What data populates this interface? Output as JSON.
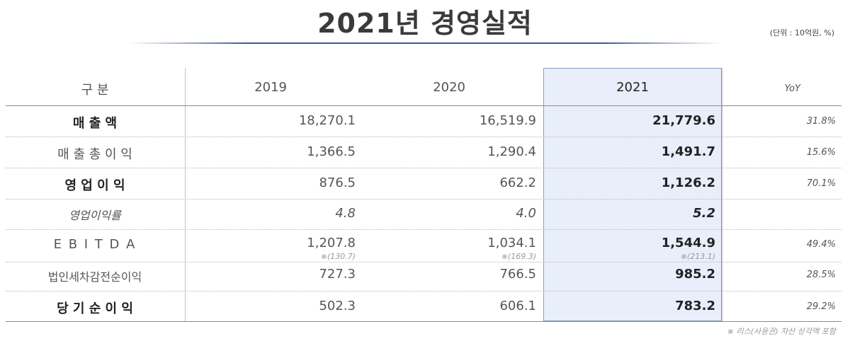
{
  "title": "2021년 경영실적",
  "unit_note": "(단위 : 10억원, %)",
  "header": {
    "label": "구  분",
    "y2019": "2019",
    "y2020": "2020",
    "y2021": "2021",
    "yoy": "YoY"
  },
  "rows": [
    {
      "label": "매    출    액",
      "y2019": "18,270.1",
      "y2020": "16,519.9",
      "y2021": "21,779.6",
      "yoy": "31.8%"
    },
    {
      "label": "매 출 총 이 익",
      "y2019": "1,366.5",
      "y2020": "1,290.4",
      "y2021": "1,491.7",
      "yoy": "15.6%"
    },
    {
      "label": "영 업 이 익",
      "y2019": "876.5",
      "y2020": "662.2",
      "y2021": "1,126.2",
      "yoy": "70.1%"
    },
    {
      "label": "영업이익률",
      "y2019": "4.8",
      "y2020": "4.0",
      "y2021": "5.2",
      "yoy": ""
    },
    {
      "label": "E B I T D A",
      "y2019": "1,207.8",
      "y2020": "1,034.1",
      "y2021": "1,544.9",
      "yoy": "49.4%",
      "note2019": "※(130.7)",
      "note2020": "※(169.3)",
      "note2021": "※(213.1)"
    },
    {
      "label": "법인세차감전순이익",
      "y2019": "727.3",
      "y2020": "766.5",
      "y2021": "985.2",
      "yoy": "28.5%"
    },
    {
      "label": "당 기 순 이 익",
      "y2019": "502.3",
      "y2020": "606.1",
      "y2021": "783.2",
      "yoy": "29.2%"
    }
  ],
  "footnote": "※ 리스(사용권) 자산 상각액 포함"
}
